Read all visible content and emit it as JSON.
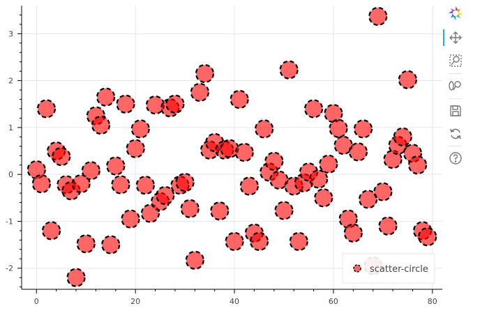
{
  "chart_data": {
    "type": "scatter",
    "xlim": [
      -3,
      82
    ],
    "ylim": [
      -2.45,
      3.6
    ],
    "x_ticks": [
      0,
      20,
      40,
      60,
      80
    ],
    "y_ticks": [
      -2,
      -1,
      0,
      1,
      2,
      3
    ],
    "x_tick_labels": [
      "0",
      "20",
      "40",
      "60",
      "80"
    ],
    "y_tick_labels": [
      "-2",
      "-1",
      "0",
      "1",
      "2",
      "3"
    ],
    "grid": true,
    "legend_position": "bottom-right",
    "series": [
      {
        "name": "scatter-circle",
        "marker": "circle",
        "fill_color": "#ff0000",
        "fill_alpha": 0.6,
        "line_color": "#000000",
        "line_dash": "dashed",
        "x": [
          0,
          1,
          2,
          3,
          4,
          5,
          6,
          7,
          8,
          9,
          10,
          11,
          12,
          13,
          14,
          15,
          16,
          17,
          18,
          19,
          20,
          21,
          22,
          23,
          24,
          25,
          26,
          27,
          28,
          29,
          30,
          31,
          32,
          33,
          34,
          35,
          36,
          37,
          38,
          39,
          40,
          41,
          42,
          43,
          44,
          45,
          46,
          47,
          48,
          49,
          50,
          51,
          52,
          53,
          54,
          55,
          56,
          57,
          58,
          59,
          60,
          61,
          62,
          63,
          64,
          65,
          66,
          67,
          68,
          69,
          70,
          71,
          72,
          73,
          74,
          75,
          76,
          77,
          78,
          79
        ],
        "y": [
          0.1,
          -0.2,
          1.4,
          -1.2,
          0.5,
          0.38,
          -0.22,
          -0.35,
          -2.2,
          -0.2,
          -1.48,
          0.08,
          1.25,
          1.05,
          1.65,
          -1.5,
          0.18,
          -0.22,
          1.5,
          -0.95,
          0.55,
          0.97,
          -0.23,
          -0.83,
          1.48,
          -0.58,
          -0.45,
          1.42,
          1.5,
          -0.23,
          -0.17,
          -0.73,
          -1.83,
          1.75,
          2.15,
          0.52,
          0.68,
          -0.78,
          0.52,
          0.55,
          -1.43,
          1.6,
          0.47,
          -0.25,
          -1.25,
          -1.43,
          0.97,
          0.05,
          0.28,
          -0.12,
          -0.77,
          2.23,
          -0.25,
          -1.43,
          -0.18,
          0.05,
          1.4,
          -0.1,
          -0.5,
          0.22,
          1.3,
          0.98,
          0.62,
          -0.95,
          -1.25,
          0.48,
          0.97,
          -0.53,
          -1.95,
          3.37,
          -0.37,
          -1.1,
          0.32,
          0.62,
          0.8,
          2.02,
          0.45,
          0.2,
          -1.2,
          -1.33
        ]
      }
    ]
  }
}
